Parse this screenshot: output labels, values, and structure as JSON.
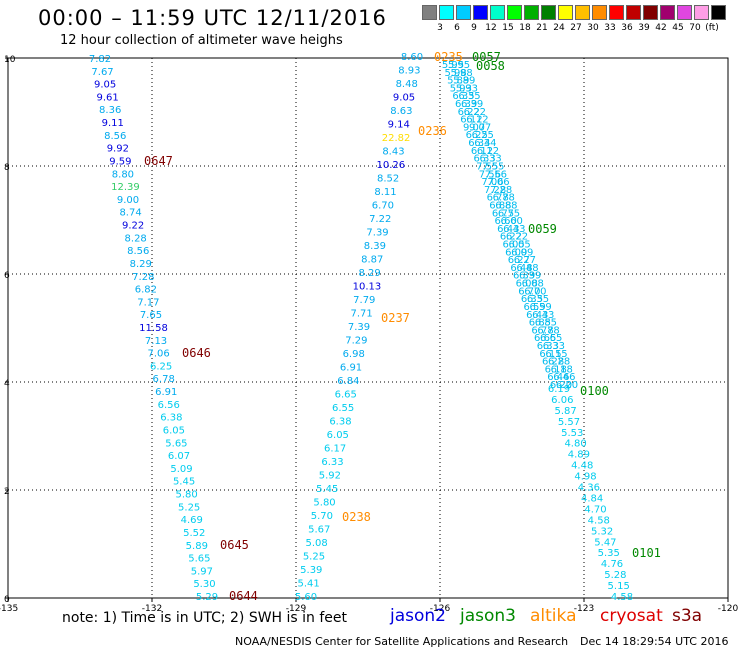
{
  "header": {
    "title": "00:00 – 11:59 UTC 12/11/2016",
    "subtitle": "12 hour collection of altimeter wave heighs"
  },
  "colorbar": {
    "colors": [
      "#808080",
      "#00ffff",
      "#00ccff",
      "#0000ff",
      "#00ffcc",
      "#00ff00",
      "#00b000",
      "#008000",
      "#ffff00",
      "#ffbf00",
      "#ff8c00",
      "#ff0000",
      "#c00000",
      "#800000",
      "#a0006e",
      "#e046e0",
      "#ff9ee6",
      "#000000"
    ],
    "labels": [
      "3",
      "6",
      "9",
      "12",
      "15",
      "18",
      "21",
      "24",
      "27",
      "30",
      "33",
      "36",
      "39",
      "42",
      "45",
      "70",
      "(ft)"
    ]
  },
  "map": {
    "x_ticks": [
      "-135",
      "-132",
      "-129",
      "-126",
      "-123",
      "-120"
    ],
    "y_ticks": [
      "0",
      "2",
      "4",
      "6",
      "8",
      "10"
    ],
    "lon_range": [
      -135,
      -120
    ],
    "lat_range": [
      0,
      10
    ],
    "track1": {
      "values": [
        "7.82",
        "7.67",
        "9.05",
        "9.61",
        "8.36",
        "9.11",
        "8.56",
        "9.92",
        "9.59",
        "8.80",
        "12.39",
        "9.00",
        "8.74",
        "9.22",
        "8.28",
        "8.56",
        "8.29",
        "7.28",
        "6.82",
        "7.17",
        "7.65",
        "11.58",
        "7.13",
        "7.06",
        "6.25",
        "6.78",
        "6.91",
        "6.56",
        "6.38",
        "6.05",
        "5.65",
        "6.07",
        "5.09",
        "5.45",
        "5.80",
        "5.25",
        "4.69",
        "5.52",
        "5.89",
        "5.65",
        "5.97",
        "5.30",
        "5.29"
      ],
      "colors": [
        "#00aaee",
        "#00aaee",
        "#0000dd",
        "#0000dd",
        "#00aaee",
        "#0000dd",
        "#00aaee",
        "#0000dd",
        "#0000dd",
        "#00aaee",
        "#33cc66",
        "#00aaee",
        "#00aaee",
        "#0000dd",
        "#00aaee",
        "#00aaee",
        "#00aaee",
        "#00aaee",
        "#00aaee",
        "#00aaee",
        "#00aaee",
        "#0000dd",
        "#00aaee",
        "#00aaee",
        "#00ccee",
        "#00aaee",
        "#00aaee",
        "#00ccee",
        "#00ccee",
        "#00ccee",
        "#00ccee",
        "#00ccee",
        "#00ccee",
        "#00ccee",
        "#00ccee",
        "#00ccee",
        "#00ccee",
        "#00ccee",
        "#00ccee",
        "#00ccee",
        "#00ccee",
        "#00ccee",
        "#00ccee"
      ],
      "times": [
        "0647",
        "0646",
        "0645",
        "0644"
      ],
      "time_color": "#800000"
    },
    "track2": {
      "values": [
        "8.60",
        "8.93",
        "8.48",
        "9.05",
        "8.63",
        "9.14",
        "22.82",
        "8.43",
        "10.26",
        "8.52",
        "8.11",
        "6.70",
        "7.22",
        "7.39",
        "8.39",
        "8.87",
        "8.29",
        "10.13",
        "7.79",
        "7.71",
        "7.39",
        "7.29",
        "6.98",
        "6.91",
        "6.84",
        "6.65",
        "6.55",
        "6.38",
        "6.05",
        "6.17",
        "6.33",
        "5.92",
        "5.45",
        "5.80",
        "5.70",
        "5.67",
        "5.08",
        "5.25",
        "5.39",
        "5.41",
        "5.60"
      ],
      "colors": [
        "#00aaee",
        "#00aaee",
        "#00aaee",
        "#0000dd",
        "#00aaee",
        "#0000dd",
        "#ffdd00",
        "#00aaee",
        "#0000dd",
        "#00aaee",
        "#00aaee",
        "#00aaee",
        "#00aaee",
        "#00aaee",
        "#00aaee",
        "#00aaee",
        "#00aaee",
        "#0000dd",
        "#00aaee",
        "#00aaee",
        "#00aaee",
        "#00aaee",
        "#00aaee",
        "#00aaee",
        "#00aaee",
        "#00ccee",
        "#00ccee",
        "#00ccee",
        "#00ccee",
        "#00ccee",
        "#00ccee",
        "#00ccee",
        "#00ccee",
        "#00ccee",
        "#00ccee",
        "#00ccee",
        "#00ccee",
        "#00ccee",
        "#00ccee",
        "#00ccee",
        "#00ccee"
      ],
      "times": [
        "0235",
        "0236",
        "0237",
        "0238"
      ],
      "time_color": "#ff8c00"
    },
    "track3": {
      "values": [
        "6.19",
        "6.06",
        "5.87",
        "5.57",
        "5.53",
        "4.80",
        "4.89",
        "4.48",
        "4.98",
        "4.36",
        "4.84",
        "4.70",
        "4.58",
        "5.32",
        "5.47",
        "5.35",
        "4.76",
        "5.28",
        "5.15",
        "4.58"
      ],
      "colors": [
        "#00ccee",
        "#00ccee",
        "#00ccee",
        "#00ccee",
        "#00ccee",
        "#00ccee",
        "#00ccee",
        "#00ccee",
        "#00ccee",
        "#00ccee",
        "#00ccee",
        "#00ccee",
        "#00ccee",
        "#00ccee",
        "#00ccee",
        "#00ccee",
        "#00ccee",
        "#00ccee",
        "#00ccee",
        "#00ccee"
      ],
      "times": [
        "0057",
        "0058",
        "0059",
        "0100",
        "0101"
      ],
      "time_color": "#008800"
    }
  },
  "footer": {
    "note": "note:  1) Time is in UTC;  2) SWH is in feet",
    "legend": [
      {
        "label": "jason2",
        "color": "#0000dd"
      },
      {
        "label": "jason3",
        "color": "#008800"
      },
      {
        "label": "altika",
        "color": "#ff8c00"
      },
      {
        "label": "cryosat",
        "color": "#dd0000"
      },
      {
        "label": "s3a",
        "color": "#800000"
      }
    ],
    "credit": "NOAA/NESDIS Center for Satellite Applications and Research",
    "timestamp": "Dec 14 18:29:54 UTC 2016"
  }
}
